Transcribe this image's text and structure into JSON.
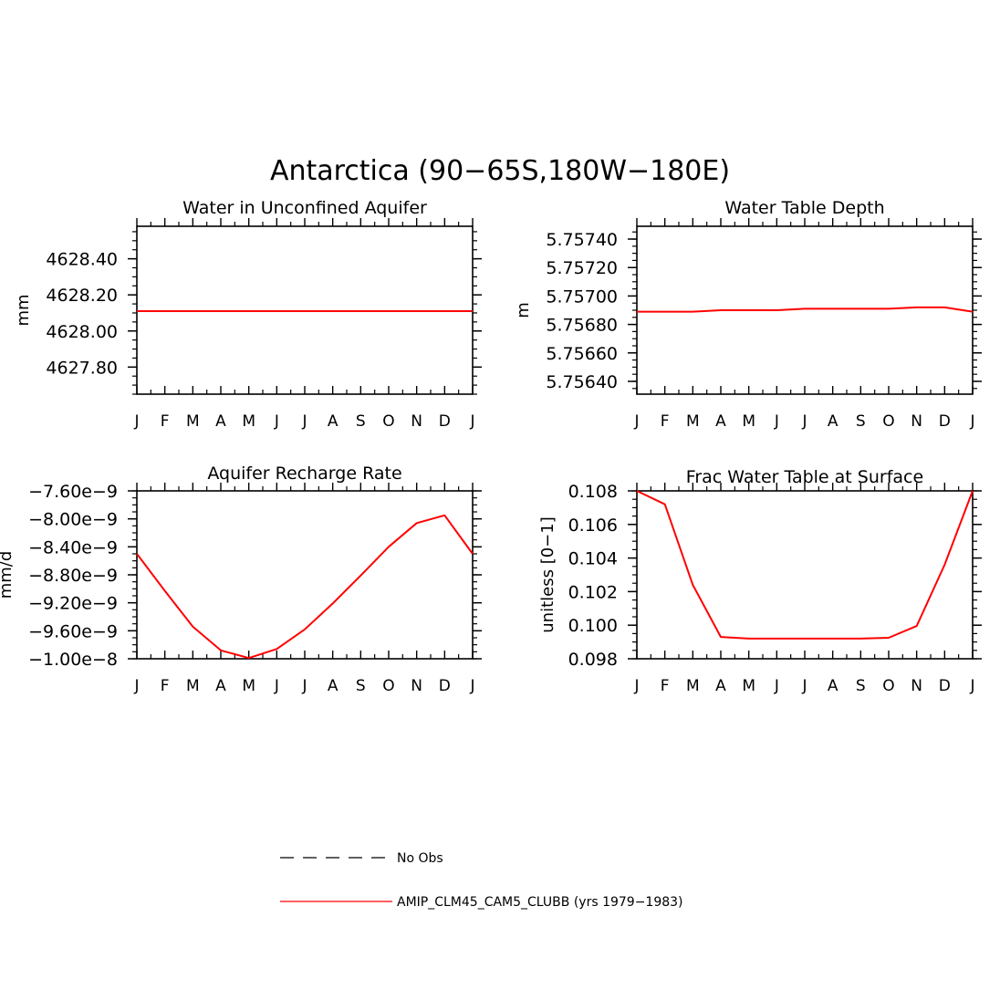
{
  "title": "Antarctica (90−65S,180W−180E)",
  "legend": {
    "obs_label": "No Obs",
    "model_label": "AMIP_CLM45_CAM5_CLUBB (yrs 1979−1983)",
    "model_color": "#ff0000",
    "obs_color": "#000000"
  },
  "chart_data": [
    {
      "type": "line",
      "title": "Water in Unconfined Aquifer",
      "ylabel": "mm",
      "x": [
        "J",
        "F",
        "M",
        "A",
        "M",
        "J",
        "J",
        "A",
        "S",
        "O",
        "N",
        "D",
        "J"
      ],
      "ylim": [
        4627.65,
        4628.58
      ],
      "yticks": [
        4627.8,
        4628.0,
        4628.2,
        4628.4
      ],
      "ytick_labels": [
        "4627.80",
        "4628.00",
        "4628.20",
        "4628.40"
      ],
      "series": [
        {
          "color": "#ff0000",
          "values": [
            4628.11,
            4628.11,
            4628.11,
            4628.11,
            4628.11,
            4628.11,
            4628.11,
            4628.11,
            4628.11,
            4628.11,
            4628.11,
            4628.11,
            4628.11
          ]
        }
      ]
    },
    {
      "type": "line",
      "title": "Water Table Depth",
      "ylabel": "m",
      "x": [
        "J",
        "F",
        "M",
        "A",
        "M",
        "J",
        "J",
        "A",
        "S",
        "O",
        "N",
        "D",
        "J"
      ],
      "ylim": [
        5.75631,
        5.75749
      ],
      "yticks": [
        5.7564,
        5.7566,
        5.7568,
        5.757,
        5.7572,
        5.7574
      ],
      "ytick_labels": [
        "5.75640",
        "5.75660",
        "5.75680",
        "5.75700",
        "5.75720",
        "5.75740"
      ],
      "series": [
        {
          "color": "#ff0000",
          "values": [
            5.75689,
            5.75689,
            5.75689,
            5.7569,
            5.7569,
            5.7569,
            5.75691,
            5.75691,
            5.75691,
            5.75691,
            5.75692,
            5.75692,
            5.75689
          ]
        }
      ]
    },
    {
      "type": "line",
      "title": "Aquifer Recharge Rate",
      "ylabel": "mm/d",
      "x": [
        "J",
        "F",
        "M",
        "A",
        "M",
        "J",
        "J",
        "A",
        "S",
        "O",
        "N",
        "D",
        "J"
      ],
      "ylim": [
        -1e-08,
        -7.6e-09
      ],
      "yticks": [
        -1e-08,
        -9.6e-09,
        -9.2e-09,
        -8.8e-09,
        -8.4e-09,
        -8e-09,
        -7.6e-09
      ],
      "ytick_labels": [
        "−1.00e−8",
        "−9.60e−9",
        "−9.20e−9",
        "−8.80e−9",
        "−8.40e−9",
        "−8.00e−9",
        "−7.60e−9"
      ],
      "series": [
        {
          "color": "#ff0000",
          "values": [
            -8.5e-09,
            -9.03e-09,
            -9.54e-09,
            -9.88e-09,
            -9.99e-09,
            -9.86e-09,
            -9.58e-09,
            -9.21e-09,
            -8.81e-09,
            -8.4e-09,
            -8.06e-09,
            -7.95e-09,
            -8.5e-09
          ]
        }
      ]
    },
    {
      "type": "line",
      "title": "Frac Water Table at Surface",
      "ylabel": "unitless [0−1]",
      "x": [
        "J",
        "F",
        "M",
        "A",
        "M",
        "J",
        "J",
        "A",
        "S",
        "O",
        "N",
        "D",
        "J"
      ],
      "ylim": [
        0.098,
        0.108
      ],
      "yticks": [
        0.098,
        0.1,
        0.102,
        0.104,
        0.106,
        0.108
      ],
      "ytick_labels": [
        "0.098",
        "0.100",
        "0.102",
        "0.104",
        "0.106",
        "0.108"
      ],
      "series": [
        {
          "color": "#ff0000",
          "values": [
            0.108,
            0.1072,
            0.1024,
            0.0993,
            0.0992,
            0.0992,
            0.0992,
            0.0992,
            0.0992,
            0.09925,
            0.09995,
            0.1036,
            0.108
          ]
        }
      ]
    }
  ]
}
